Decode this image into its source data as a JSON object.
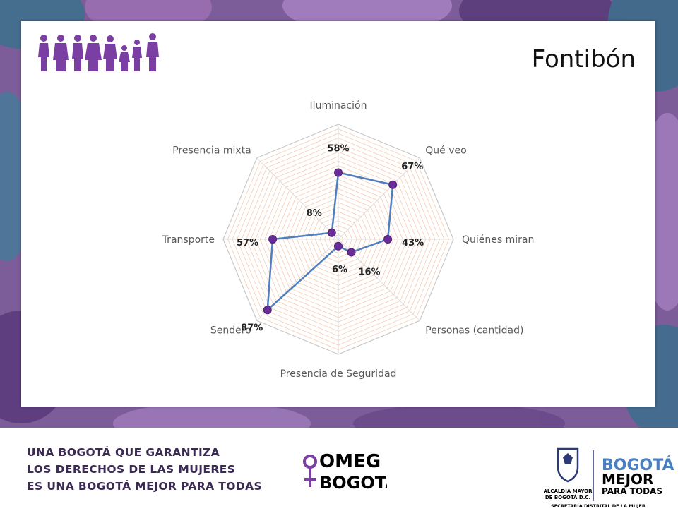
{
  "header": {
    "title": "Fontibón"
  },
  "colors": {
    "series": "#4f7fbf",
    "marker": "#6a2c9a",
    "web_bands": "#f3b38a",
    "backdrop": "#7a5a96",
    "brand_purple": "#7b3fa4",
    "brand_navy": "#2c3a78"
  },
  "chart_data": {
    "type": "radar",
    "axes": [
      "Iluminación",
      "Qué veo",
      "Quiénes miran",
      "Personas (cantidad)",
      "Presencia de Seguridad",
      "Sendero",
      "Transporte",
      "Presencia mixta"
    ],
    "values": [
      58,
      67,
      43,
      16,
      6,
      87,
      57,
      8
    ],
    "value_labels": [
      "58%",
      "67%",
      "43%",
      "16%",
      "6%",
      "87%",
      "57%",
      "8%"
    ],
    "unit": "%",
    "rlim": [
      0,
      100
    ],
    "grid": true
  },
  "footer": {
    "slogan": [
      "UNA BOGOTÁ QUE GARANTIZA",
      "LOS DERECHOS DE LAS MUJERES",
      "ES UNA BOGOTÁ MEJOR PARA TODAS"
    ],
    "omeg": {
      "line1": "OMEG",
      "line2": "BOGOTÁ"
    },
    "alcaldia": [
      "ALCALDÍA MAYOR",
      "DE BOGOTÁ D.C."
    ],
    "bogota_mejor": [
      "BOGOTÁ",
      "MEJOR",
      "PARA TODAS"
    ],
    "secretaria": "SECRETARÍA DISTRITAL DE LA MUJER"
  }
}
